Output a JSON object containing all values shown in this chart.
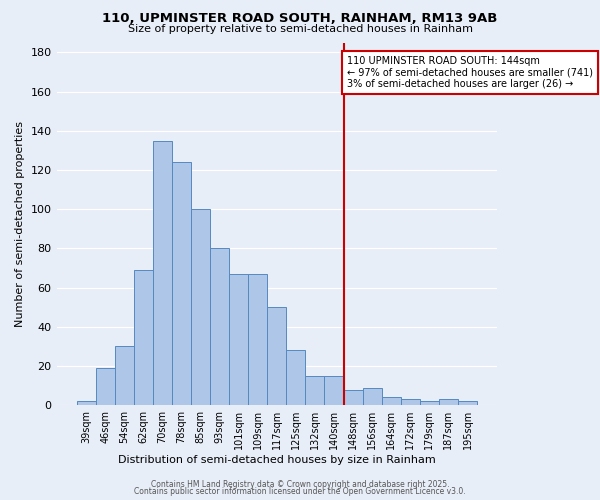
{
  "title1": "110, UPMINSTER ROAD SOUTH, RAINHAM, RM13 9AB",
  "title2": "Size of property relative to semi-detached houses in Rainham",
  "xlabel": "Distribution of semi-detached houses by size in Rainham",
  "ylabel": "Number of semi-detached properties",
  "categories": [
    "39sqm",
    "46sqm",
    "54sqm",
    "62sqm",
    "70sqm",
    "78sqm",
    "85sqm",
    "93sqm",
    "101sqm",
    "109sqm",
    "117sqm",
    "125sqm",
    "132sqm",
    "140sqm",
    "148sqm",
    "156sqm",
    "164sqm",
    "172sqm",
    "179sqm",
    "187sqm",
    "195sqm"
  ],
  "values": [
    2,
    19,
    30,
    69,
    135,
    124,
    100,
    80,
    67,
    67,
    50,
    28,
    15,
    15,
    8,
    9,
    4,
    3,
    2,
    3,
    2
  ],
  "bar_color": "#aec6e8",
  "bar_edge_color": "#5589c0",
  "vline_color": "#cc0000",
  "annotation_title": "110 UPMINSTER ROAD SOUTH: 144sqm",
  "annotation_line1": "← 97% of semi-detached houses are smaller (741)",
  "annotation_line2": "3% of semi-detached houses are larger (26) →",
  "annotation_box_color": "#cc0000",
  "ylim": [
    0,
    185
  ],
  "yticks": [
    0,
    20,
    40,
    60,
    80,
    100,
    120,
    140,
    160,
    180
  ],
  "bg_color": "#e8eef8",
  "grid_color": "#ffffff",
  "footer1": "Contains HM Land Registry data © Crown copyright and database right 2025.",
  "footer2": "Contains public sector information licensed under the Open Government Licence v3.0."
}
